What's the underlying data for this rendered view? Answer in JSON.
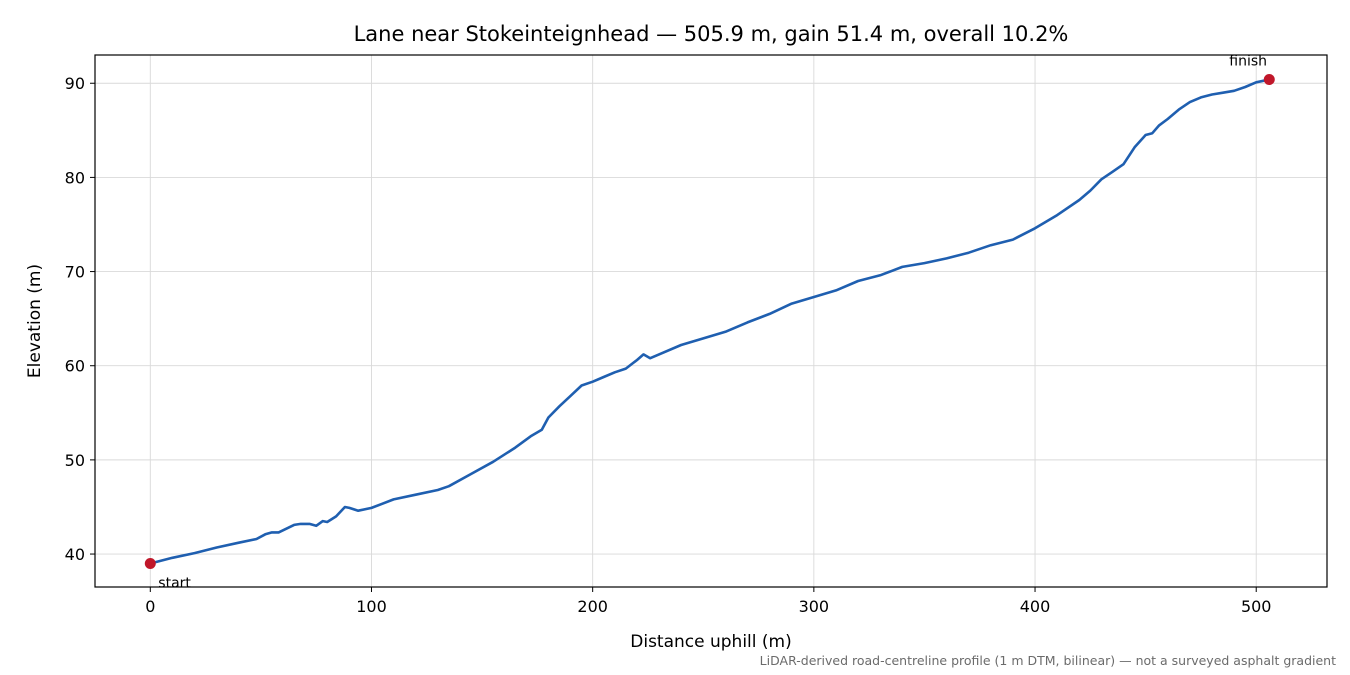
{
  "chart_data": {
    "type": "line",
    "title": "Lane near Stokeinteignhead — 505.9 m, gain 51.4 m, overall 10.2%",
    "xlabel": "Distance uphill (m)",
    "ylabel": "Elevation (m)",
    "xlim": [
      -25,
      532
    ],
    "ylim": [
      36.5,
      93
    ],
    "xticks": [
      0,
      100,
      200,
      300,
      400,
      500
    ],
    "yticks": [
      40,
      50,
      60,
      70,
      80,
      90
    ],
    "grid": true,
    "footnote": "LiDAR-derived road-centreline profile (1 m DTM, bilinear) — not a surveyed asphalt gradient",
    "series": [
      {
        "color": "#1f5fb0",
        "x": [
          0,
          10,
          20,
          30,
          40,
          48,
          52,
          55,
          58,
          65,
          68,
          72,
          75,
          78,
          80,
          84,
          88,
          90,
          94,
          100,
          110,
          120,
          130,
          135,
          145,
          155,
          165,
          172,
          177,
          180,
          185,
          190,
          195,
          200,
          205,
          210,
          215,
          220,
          223,
          226,
          230,
          240,
          250,
          260,
          270,
          280,
          290,
          300,
          310,
          320,
          330,
          340,
          350,
          360,
          370,
          380,
          390,
          400,
          410,
          420,
          425,
          430,
          435,
          440,
          445,
          450,
          453,
          456,
          460,
          465,
          470,
          475,
          480,
          485,
          490,
          495,
          500,
          505.9
        ],
        "y": [
          39.0,
          39.6,
          40.1,
          40.7,
          41.2,
          41.6,
          42.1,
          42.3,
          42.3,
          43.1,
          43.2,
          43.2,
          43.0,
          43.5,
          43.4,
          44.0,
          45.0,
          44.9,
          44.6,
          44.9,
          45.8,
          46.3,
          46.8,
          47.2,
          48.5,
          49.8,
          51.3,
          52.5,
          53.2,
          54.5,
          55.7,
          56.8,
          57.9,
          58.3,
          58.8,
          59.3,
          59.7,
          60.6,
          61.2,
          60.8,
          61.2,
          62.2,
          62.9,
          63.6,
          64.6,
          65.5,
          66.6,
          67.3,
          68.0,
          69.0,
          69.6,
          70.5,
          70.9,
          71.4,
          72.0,
          72.8,
          73.4,
          74.6,
          76.0,
          77.6,
          78.6,
          79.8,
          80.6,
          81.4,
          83.2,
          84.5,
          84.7,
          85.5,
          86.2,
          87.2,
          88.0,
          88.5,
          88.8,
          89.0,
          89.2,
          89.6,
          90.1,
          90.4
        ]
      }
    ],
    "markers": [
      {
        "label": "start",
        "x": 0,
        "y": 39.0,
        "color": "#c0172a"
      },
      {
        "label": "finish",
        "x": 505.9,
        "y": 90.4,
        "color": "#c0172a"
      }
    ]
  }
}
